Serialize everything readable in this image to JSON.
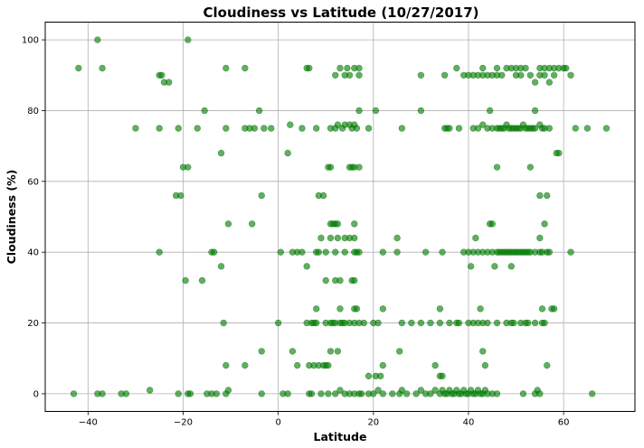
{
  "chart_data": {
    "type": "scatter",
    "title": "Cloudiness vs Latitude (10/27/2017)",
    "xlabel": "Latitude",
    "ylabel": "Cloudiness (%)",
    "xlim": [
      -49,
      75
    ],
    "ylim": [
      -5,
      105
    ],
    "xticks": [
      -40,
      -20,
      0,
      20,
      40,
      60
    ],
    "yticks": [
      0,
      20,
      40,
      60,
      80,
      100
    ],
    "grid": true,
    "marker_color": "#008000",
    "points": [
      [
        -43,
        0
      ],
      [
        -38,
        0
      ],
      [
        -37,
        0
      ],
      [
        -33,
        0
      ],
      [
        -32,
        0
      ],
      [
        -27,
        1
      ],
      [
        -21,
        0
      ],
      [
        -19,
        0
      ],
      [
        -18.5,
        0
      ],
      [
        -15,
        0
      ],
      [
        -14,
        0
      ],
      [
        -13,
        0
      ],
      [
        -11,
        0
      ],
      [
        -10.5,
        1
      ],
      [
        -3.5,
        0
      ],
      [
        1,
        0
      ],
      [
        2,
        0
      ],
      [
        -42,
        92
      ],
      [
        -38,
        100
      ],
      [
        -37,
        92
      ],
      [
        -25,
        90
      ],
      [
        -24.5,
        90
      ],
      [
        -24,
        88
      ],
      [
        -23,
        88
      ],
      [
        -19,
        100
      ],
      [
        -11,
        92
      ],
      [
        -7,
        92
      ],
      [
        6,
        92
      ],
      [
        6.5,
        92
      ],
      [
        12,
        90
      ],
      [
        13,
        92
      ],
      [
        14,
        90
      ],
      [
        14.5,
        92
      ],
      [
        15,
        90
      ],
      [
        16,
        92
      ],
      [
        17,
        92
      ],
      [
        17,
        90
      ],
      [
        30,
        90
      ],
      [
        35,
        90
      ],
      [
        37.5,
        92
      ],
      [
        39,
        90
      ],
      [
        40,
        90
      ],
      [
        41,
        90
      ],
      [
        42,
        90
      ],
      [
        43,
        90
      ],
      [
        43,
        92
      ],
      [
        44,
        90
      ],
      [
        45,
        90
      ],
      [
        46,
        92
      ],
      [
        46,
        90
      ],
      [
        47,
        90
      ],
      [
        48,
        92
      ],
      [
        49,
        92
      ],
      [
        50,
        92
      ],
      [
        50,
        90
      ],
      [
        51,
        92
      ],
      [
        51,
        90
      ],
      [
        52,
        92
      ],
      [
        53,
        90
      ],
      [
        54,
        88
      ],
      [
        55,
        92
      ],
      [
        55,
        90
      ],
      [
        56,
        92
      ],
      [
        56,
        90
      ],
      [
        57,
        88
      ],
      [
        57,
        92
      ],
      [
        58,
        90
      ],
      [
        58,
        92
      ],
      [
        59,
        92
      ],
      [
        60,
        92
      ],
      [
        60.5,
        92
      ],
      [
        61.5,
        90
      ],
      [
        -30,
        75
      ],
      [
        -25,
        75
      ],
      [
        -21,
        75
      ],
      [
        -17,
        75
      ],
      [
        -11,
        75
      ],
      [
        -7,
        75
      ],
      [
        -6,
        75
      ],
      [
        -5,
        75
      ],
      [
        -3,
        75
      ],
      [
        -1.5,
        75
      ],
      [
        2.5,
        76
      ],
      [
        5,
        75
      ],
      [
        8,
        75
      ],
      [
        11,
        75
      ],
      [
        12,
        75
      ],
      [
        12.5,
        76
      ],
      [
        13.5,
        75
      ],
      [
        14,
        76
      ],
      [
        15,
        76
      ],
      [
        15.5,
        75
      ],
      [
        16,
        76
      ],
      [
        16.5,
        75
      ],
      [
        19,
        75
      ],
      [
        26,
        75
      ],
      [
        35,
        75
      ],
      [
        35.5,
        75
      ],
      [
        36,
        75
      ],
      [
        38,
        75
      ],
      [
        41,
        75
      ],
      [
        42,
        75
      ],
      [
        43,
        76
      ],
      [
        44,
        75
      ],
      [
        45,
        75
      ],
      [
        46,
        75
      ],
      [
        46.5,
        75
      ],
      [
        47,
        75
      ],
      [
        47.5,
        75
      ],
      [
        48,
        76
      ],
      [
        48.5,
        75
      ],
      [
        49,
        75
      ],
      [
        49.5,
        75
      ],
      [
        50,
        75
      ],
      [
        50.5,
        75
      ],
      [
        51,
        75
      ],
      [
        51.5,
        76
      ],
      [
        52,
        75
      ],
      [
        52.5,
        75
      ],
      [
        53,
        75
      ],
      [
        53.5,
        75
      ],
      [
        54,
        75
      ],
      [
        55,
        76
      ],
      [
        55.5,
        75
      ],
      [
        56,
        75
      ],
      [
        57,
        75
      ],
      [
        62.5,
        75
      ],
      [
        65,
        75
      ],
      [
        69,
        75
      ],
      [
        -15.5,
        80
      ],
      [
        -4,
        80
      ],
      [
        17,
        80
      ],
      [
        20.5,
        80
      ],
      [
        30,
        80
      ],
      [
        44.5,
        80
      ],
      [
        54,
        80
      ],
      [
        -20,
        64
      ],
      [
        -19,
        64
      ],
      [
        -12,
        68
      ],
      [
        2,
        68
      ],
      [
        10.5,
        64
      ],
      [
        11,
        64
      ],
      [
        15,
        64
      ],
      [
        15.5,
        64
      ],
      [
        16,
        64
      ],
      [
        17,
        64
      ],
      [
        46,
        64
      ],
      [
        53,
        64
      ],
      [
        58.5,
        68
      ],
      [
        59,
        68
      ],
      [
        -21.5,
        56
      ],
      [
        -20.5,
        56
      ],
      [
        -3.5,
        56
      ],
      [
        8.5,
        56
      ],
      [
        9.5,
        56
      ],
      [
        55,
        56
      ],
      [
        56.5,
        56
      ],
      [
        -10.5,
        48
      ],
      [
        -5.5,
        48
      ],
      [
        11,
        48
      ],
      [
        11.5,
        48
      ],
      [
        12,
        48
      ],
      [
        12.5,
        48
      ],
      [
        16,
        48
      ],
      [
        44.5,
        48
      ],
      [
        45,
        48
      ],
      [
        56,
        48
      ],
      [
        -25,
        40
      ],
      [
        -14,
        40
      ],
      [
        -13.5,
        40
      ],
      [
        0.5,
        40
      ],
      [
        3,
        40
      ],
      [
        4,
        40
      ],
      [
        5,
        40
      ],
      [
        8,
        40
      ],
      [
        8.5,
        40
      ],
      [
        10,
        40
      ],
      [
        12,
        40
      ],
      [
        14,
        40
      ],
      [
        16,
        40
      ],
      [
        16.5,
        40
      ],
      [
        17,
        40
      ],
      [
        22,
        40
      ],
      [
        25,
        40
      ],
      [
        31,
        40
      ],
      [
        34.5,
        40
      ],
      [
        39,
        40
      ],
      [
        40,
        40
      ],
      [
        41,
        40
      ],
      [
        42,
        40
      ],
      [
        43,
        40
      ],
      [
        44,
        40
      ],
      [
        45,
        40
      ],
      [
        46,
        40
      ],
      [
        46.5,
        40
      ],
      [
        47,
        40
      ],
      [
        47.5,
        40
      ],
      [
        48,
        40
      ],
      [
        48.5,
        40
      ],
      [
        49,
        40
      ],
      [
        49.5,
        40
      ],
      [
        50,
        40
      ],
      [
        50.5,
        40
      ],
      [
        51,
        40
      ],
      [
        51.5,
        40
      ],
      [
        52,
        40
      ],
      [
        52.5,
        40
      ],
      [
        53,
        40
      ],
      [
        54,
        40
      ],
      [
        55,
        40
      ],
      [
        55.5,
        40
      ],
      [
        56.5,
        40
      ],
      [
        57,
        40
      ],
      [
        61.5,
        40
      ],
      [
        -12,
        36
      ],
      [
        6,
        36
      ],
      [
        9,
        44
      ],
      [
        11,
        44
      ],
      [
        12.5,
        44
      ],
      [
        14,
        44
      ],
      [
        15,
        44
      ],
      [
        16,
        44
      ],
      [
        25,
        44
      ],
      [
        40.5,
        36
      ],
      [
        41.5,
        44
      ],
      [
        45.5,
        36
      ],
      [
        49,
        36
      ],
      [
        55,
        44
      ],
      [
        -19.5,
        32
      ],
      [
        -16,
        32
      ],
      [
        10,
        32
      ],
      [
        12,
        32
      ],
      [
        13,
        32
      ],
      [
        15.5,
        32
      ],
      [
        16,
        32
      ],
      [
        42.5,
        24
      ],
      [
        16,
        24
      ],
      [
        16.5,
        24
      ],
      [
        8,
        24
      ],
      [
        13,
        24
      ],
      [
        22,
        24
      ],
      [
        34,
        24
      ],
      [
        55.5,
        24
      ],
      [
        57.5,
        24
      ],
      [
        58,
        24
      ],
      [
        -11.5,
        20
      ],
      [
        0,
        20
      ],
      [
        6,
        20
      ],
      [
        7,
        20
      ],
      [
        7.5,
        20
      ],
      [
        8,
        20
      ],
      [
        10,
        20
      ],
      [
        11,
        20
      ],
      [
        11.5,
        20
      ],
      [
        12,
        20
      ],
      [
        13,
        20
      ],
      [
        13.5,
        20
      ],
      [
        14,
        20
      ],
      [
        15,
        20
      ],
      [
        16,
        20
      ],
      [
        17,
        20
      ],
      [
        18,
        20
      ],
      [
        20,
        20
      ],
      [
        21,
        20
      ],
      [
        26,
        20
      ],
      [
        28,
        20
      ],
      [
        30,
        20
      ],
      [
        32,
        20
      ],
      [
        34,
        20
      ],
      [
        36,
        20
      ],
      [
        37.5,
        20
      ],
      [
        38,
        20
      ],
      [
        40,
        20
      ],
      [
        41,
        20
      ],
      [
        42,
        20
      ],
      [
        43,
        20
      ],
      [
        44,
        20
      ],
      [
        46,
        20
      ],
      [
        48,
        20
      ],
      [
        49,
        20
      ],
      [
        49.5,
        20
      ],
      [
        51,
        20
      ],
      [
        52,
        20
      ],
      [
        52.5,
        20
      ],
      [
        54,
        20
      ],
      [
        55.5,
        20
      ],
      [
        56,
        20
      ],
      [
        -3.5,
        12
      ],
      [
        3,
        12
      ],
      [
        4,
        8
      ],
      [
        6.5,
        8
      ],
      [
        7.5,
        8
      ],
      [
        8.5,
        8
      ],
      [
        9.5,
        8
      ],
      [
        10,
        8
      ],
      [
        10.5,
        8
      ],
      [
        11,
        12
      ],
      [
        12.5,
        12
      ],
      [
        -7,
        8
      ],
      [
        -11,
        8
      ],
      [
        25.5,
        12
      ],
      [
        33,
        8
      ],
      [
        34,
        5
      ],
      [
        34.5,
        5
      ],
      [
        19,
        5
      ],
      [
        20.5,
        5
      ],
      [
        21.5,
        5
      ],
      [
        22,
        8
      ],
      [
        43,
        12
      ],
      [
        43.5,
        8
      ],
      [
        56.5,
        8
      ],
      [
        6.5,
        0
      ],
      [
        7,
        0
      ],
      [
        9,
        0
      ],
      [
        10.5,
        0
      ],
      [
        12,
        0
      ],
      [
        13,
        1
      ],
      [
        14,
        0
      ],
      [
        15,
        0
      ],
      [
        16,
        0
      ],
      [
        17,
        0
      ],
      [
        17.5,
        0
      ],
      [
        19,
        0
      ],
      [
        20,
        0
      ],
      [
        21,
        1
      ],
      [
        22,
        0
      ],
      [
        24,
        0
      ],
      [
        25.5,
        0
      ],
      [
        26,
        1
      ],
      [
        27,
        0
      ],
      [
        29,
        0
      ],
      [
        30,
        1
      ],
      [
        31,
        0
      ],
      [
        32,
        0
      ],
      [
        33,
        1
      ],
      [
        34,
        0
      ],
      [
        34.5,
        1
      ],
      [
        35,
        0
      ],
      [
        35.5,
        0
      ],
      [
        36,
        1
      ],
      [
        36.5,
        0
      ],
      [
        37,
        0
      ],
      [
        37.5,
        1
      ],
      [
        38,
        0
      ],
      [
        38.5,
        0
      ],
      [
        39,
        1
      ],
      [
        39.5,
        0
      ],
      [
        40,
        0
      ],
      [
        40.5,
        1
      ],
      [
        41,
        0
      ],
      [
        41.5,
        0
      ],
      [
        42,
        1
      ],
      [
        42.5,
        0
      ],
      [
        43,
        0
      ],
      [
        43.5,
        1
      ],
      [
        44,
        0
      ],
      [
        45,
        0
      ],
      [
        46,
        0
      ],
      [
        51.5,
        0
      ],
      [
        54,
        0
      ],
      [
        54.5,
        1
      ],
      [
        55,
        0
      ],
      [
        66,
        0
      ]
    ]
  }
}
